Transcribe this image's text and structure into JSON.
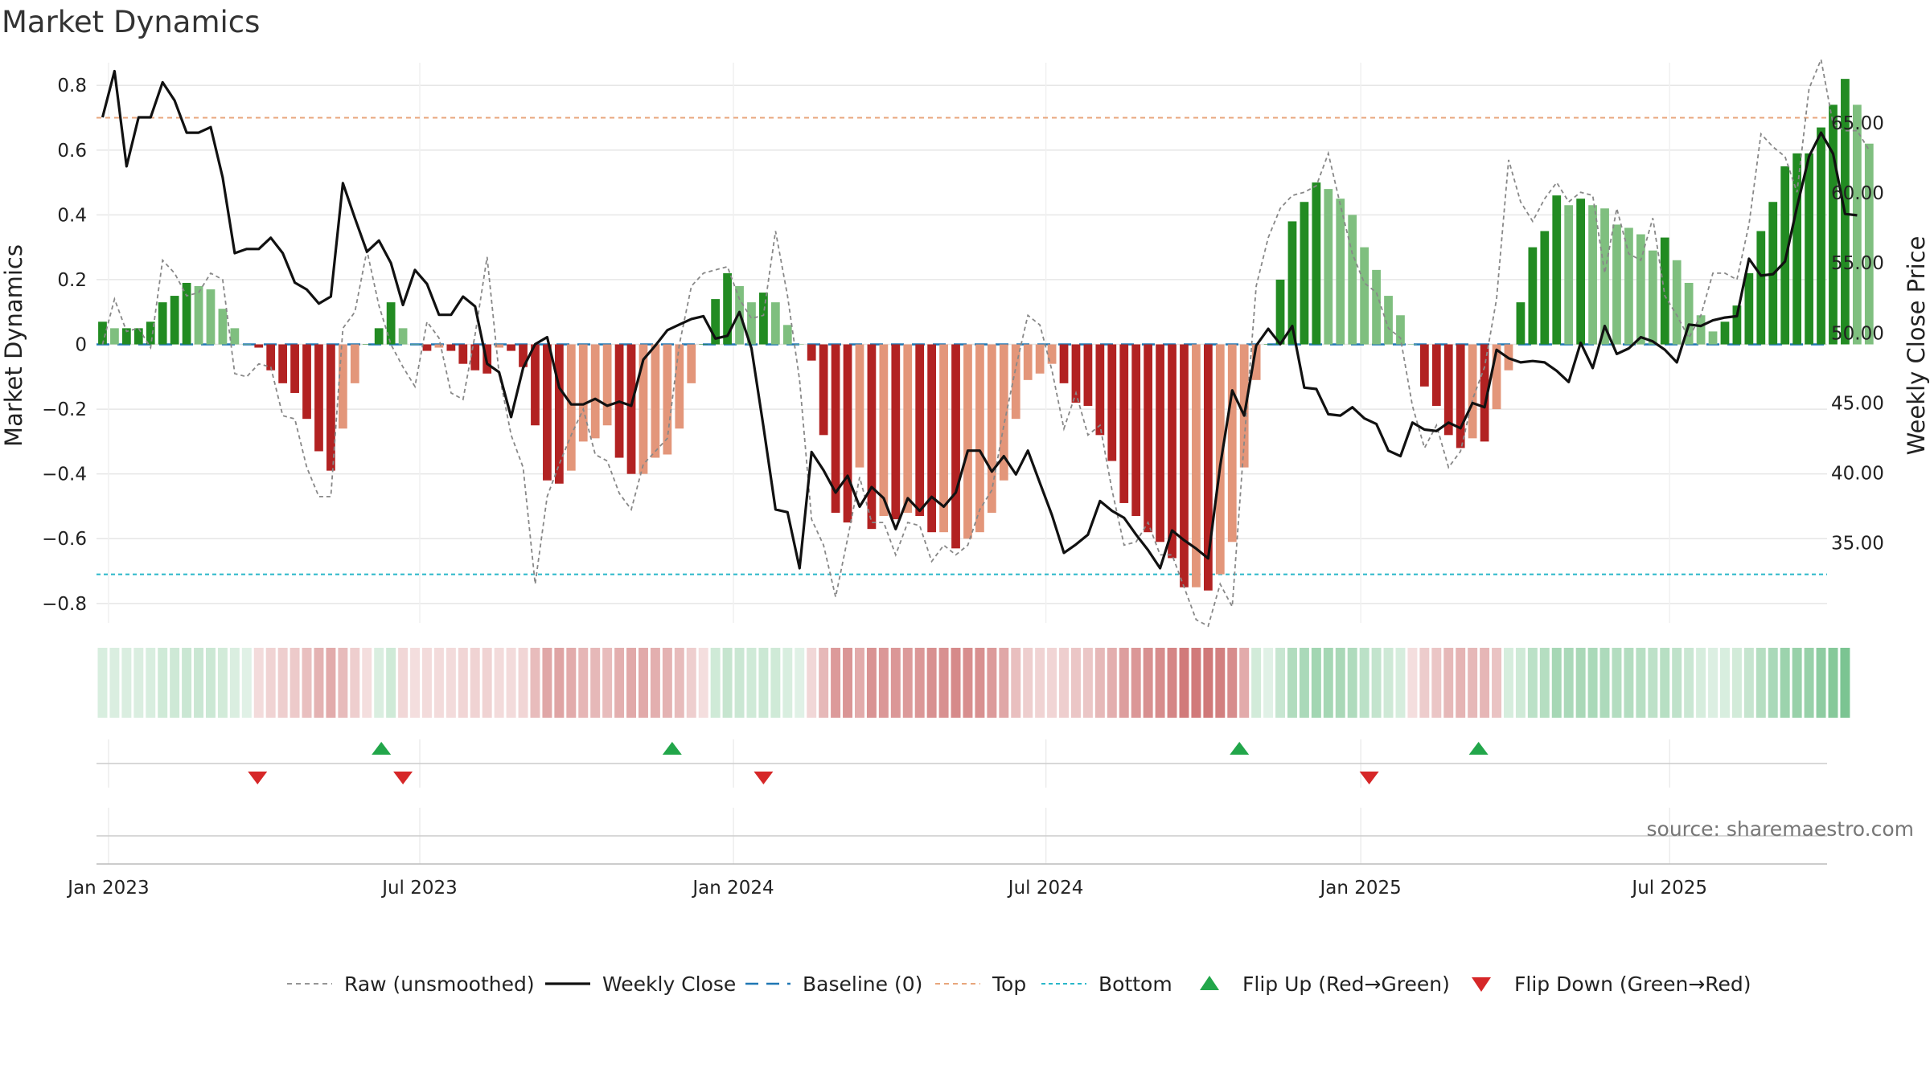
{
  "chart_data": {
    "type": "bar",
    "title": "Market Dynamics",
    "ylabel": "Market Dynamics",
    "y2label": "Weekly Close Price",
    "ylim": [
      -0.86,
      0.87
    ],
    "y2lim": [
      29.3,
      69.3
    ],
    "yticks": [
      {
        "v": 0.8,
        "label": "0.8"
      },
      {
        "v": 0.6,
        "label": "0.6"
      },
      {
        "v": 0.4,
        "label": "0.4"
      },
      {
        "v": 0.2,
        "label": "0.2"
      },
      {
        "v": 0,
        "label": "0"
      },
      {
        "v": -0.2,
        "label": "−0.2"
      },
      {
        "v": -0.4,
        "label": "−0.4"
      },
      {
        "v": -0.6,
        "label": "−0.6"
      },
      {
        "v": -0.8,
        "label": "−0.8"
      }
    ],
    "y2ticks": [
      {
        "v": 65,
        "label": "65.00"
      },
      {
        "v": 60,
        "label": "60.00"
      },
      {
        "v": 55,
        "label": "55.00"
      },
      {
        "v": 50,
        "label": "50.00"
      },
      {
        "v": 45,
        "label": "45.00"
      },
      {
        "v": 40,
        "label": "40.00"
      },
      {
        "v": 35,
        "label": "35.00"
      }
    ],
    "xticks": [
      {
        "week": 0.5,
        "label": "Jan 2023"
      },
      {
        "week": 26.4,
        "label": "Jul 2023"
      },
      {
        "week": 52.5,
        "label": "Jan 2024"
      },
      {
        "week": 78.5,
        "label": "Jul 2024"
      },
      {
        "week": 104.7,
        "label": "Jan 2025"
      },
      {
        "week": 130.4,
        "label": "Jul 2025"
      }
    ],
    "top_level": 0.7,
    "bottom_level": -0.71,
    "baseline": 0,
    "weeks": 144,
    "smoothed": [
      0.07,
      0.05,
      0.05,
      0.05,
      0.07,
      0.13,
      0.15,
      0.19,
      0.18,
      0.17,
      0.11,
      0.05,
      0.0,
      -0.01,
      -0.08,
      -0.12,
      -0.15,
      -0.23,
      -0.33,
      -0.39,
      -0.26,
      -0.12,
      0.0,
      0.05,
      0.13,
      0.05,
      0.0,
      -0.02,
      -0.01,
      -0.02,
      -0.06,
      -0.08,
      -0.09,
      -0.01,
      -0.02,
      -0.07,
      -0.25,
      -0.42,
      -0.43,
      -0.39,
      -0.3,
      -0.29,
      -0.25,
      -0.35,
      -0.4,
      -0.4,
      -0.35,
      -0.34,
      -0.26,
      -0.12,
      0.0,
      0.14,
      0.22,
      0.18,
      0.13,
      0.16,
      0.13,
      0.06,
      0.0,
      -0.05,
      -0.28,
      -0.52,
      -0.55,
      -0.38,
      -0.57,
      -0.53,
      -0.54,
      -0.52,
      -0.53,
      -0.58,
      -0.58,
      -0.63,
      -0.6,
      -0.58,
      -0.52,
      -0.42,
      -0.23,
      -0.11,
      -0.09,
      -0.06,
      -0.12,
      -0.18,
      -0.19,
      -0.28,
      -0.36,
      -0.49,
      -0.53,
      -0.58,
      -0.61,
      -0.66,
      -0.75,
      -0.75,
      -0.76,
      -0.71,
      -0.61,
      -0.38,
      -0.11,
      0.0,
      0.2,
      0.38,
      0.44,
      0.5,
      0.48,
      0.45,
      0.4,
      0.3,
      0.23,
      0.15,
      0.09,
      0.0,
      -0.13,
      -0.19,
      -0.28,
      -0.32,
      -0.29,
      -0.3,
      -0.2,
      -0.08,
      0.13,
      0.3,
      0.35,
      0.46,
      0.43,
      0.45,
      0.43,
      0.42,
      0.37,
      0.36,
      0.34,
      0.29,
      0.33,
      0.26,
      0.19,
      0.09,
      0.04,
      0.07,
      0.12,
      0.22,
      0.35,
      0.44,
      0.55,
      0.59,
      0.59,
      0.67,
      0.74,
      0.82,
      0.74,
      0.62
    ],
    "raw": [
      0.0,
      0.14,
      0.04,
      0.05,
      -0.01,
      0.26,
      0.22,
      0.15,
      0.16,
      0.22,
      0.2,
      -0.09,
      -0.1,
      -0.06,
      -0.07,
      -0.22,
      -0.23,
      -0.38,
      -0.47,
      -0.47,
      0.05,
      0.1,
      0.29,
      0.12,
      0.0,
      -0.07,
      -0.13,
      0.07,
      0.02,
      -0.15,
      -0.17,
      0.03,
      0.27,
      -0.09,
      -0.28,
      -0.38,
      -0.74,
      -0.47,
      -0.37,
      -0.28,
      -0.2,
      -0.34,
      -0.36,
      -0.46,
      -0.51,
      -0.37,
      -0.33,
      -0.29,
      0.0,
      0.18,
      0.22,
      0.23,
      0.24,
      0.14,
      0.08,
      0.09,
      0.35,
      0.15,
      -0.11,
      -0.54,
      -0.62,
      -0.78,
      -0.6,
      -0.41,
      -0.55,
      -0.55,
      -0.65,
      -0.55,
      -0.56,
      -0.67,
      -0.62,
      -0.65,
      -0.62,
      -0.51,
      -0.45,
      -0.25,
      -0.07,
      0.09,
      0.06,
      -0.08,
      -0.26,
      -0.15,
      -0.28,
      -0.25,
      -0.45,
      -0.62,
      -0.61,
      -0.55,
      -0.65,
      -0.65,
      -0.75,
      -0.85,
      -0.87,
      -0.74,
      -0.81,
      -0.3,
      0.18,
      0.33,
      0.42,
      0.46,
      0.47,
      0.49,
      0.59,
      0.43,
      0.28,
      0.19,
      0.16,
      0.05,
      0.02,
      -0.19,
      -0.32,
      -0.25,
      -0.38,
      -0.33,
      -0.17,
      -0.07,
      0.14,
      0.57,
      0.44,
      0.38,
      0.45,
      0.5,
      0.44,
      0.47,
      0.46,
      0.22,
      0.42,
      0.28,
      0.26,
      0.39,
      0.15,
      0.09,
      0.02,
      0.09,
      0.22,
      0.22,
      0.2,
      0.37,
      0.65,
      0.61,
      0.58,
      0.47,
      0.79,
      0.88,
      0.68,
      0.66,
      0.66,
      0.6
    ],
    "close": [
      65.4,
      68.7,
      61.9,
      65.4,
      65.4,
      67.9,
      66.6,
      64.3,
      64.3,
      64.7,
      61.1,
      55.7,
      56.0,
      56.0,
      56.8,
      55.7,
      53.6,
      53.1,
      52.1,
      52.6,
      60.7,
      58.2,
      55.8,
      56.6,
      55.0,
      52.0,
      54.5,
      53.5,
      51.3,
      51.3,
      52.6,
      51.9,
      47.8,
      47.2,
      44.0,
      47.5,
      49.2,
      49.7,
      46.1,
      44.9,
      44.9,
      45.3,
      44.8,
      45.1,
      44.8,
      48.1,
      49.1,
      50.2,
      50.6,
      51.0,
      51.2,
      49.6,
      49.8,
      51.5,
      48.9,
      43.3,
      37.4,
      37.2,
      33.2,
      41.5,
      40.2,
      38.6,
      39.8,
      37.6,
      39.0,
      38.2,
      36.0,
      38.2,
      37.3,
      38.3,
      37.6,
      38.6,
      41.6,
      41.6,
      40.1,
      41.2,
      39.9,
      41.6,
      39.3,
      37.0,
      34.3,
      34.9,
      35.6,
      38.0,
      37.3,
      36.8,
      35.6,
      34.5,
      33.2,
      35.9,
      35.2,
      34.6,
      33.9,
      40.5,
      45.9,
      44.1,
      49.1,
      50.3,
      49.2,
      50.5,
      46.1,
      46.0,
      44.2,
      44.1,
      44.7,
      43.9,
      43.5,
      41.6,
      41.2,
      43.6,
      43.1,
      43.0,
      43.6,
      43.2,
      45.0,
      44.7,
      48.8,
      48.2,
      47.9,
      48.0,
      47.9,
      47.3,
      46.5,
      49.3,
      47.5,
      50.5,
      48.5,
      48.9,
      49.7,
      49.4,
      48.8,
      47.9,
      50.6,
      50.5,
      50.9,
      51.1,
      51.2,
      55.3,
      54.1,
      54.2,
      55.1,
      59.0,
      62.6,
      64.3,
      62.8,
      58.5,
      58.4
    ],
    "regimes": [
      "G",
      "G",
      "G",
      "G",
      "G",
      "G",
      "G",
      "G",
      "G",
      "G",
      "G",
      "G",
      "G",
      "R",
      "R",
      "R",
      "R",
      "R",
      "R",
      "R",
      "R",
      "R",
      "R",
      "G",
      "G",
      "R",
      "R",
      "R",
      "R",
      "R",
      "R",
      "R",
      "R",
      "R",
      "R",
      "R",
      "R",
      "R",
      "R",
      "R",
      "R",
      "R",
      "R",
      "R",
      "R",
      "R",
      "R",
      "R",
      "R",
      "R",
      "R",
      "G",
      "G",
      "G",
      "G",
      "G",
      "G",
      "G",
      "G",
      "R",
      "R",
      "R",
      "R",
      "R",
      "R",
      "R",
      "R",
      "R",
      "R",
      "R",
      "R",
      "R",
      "R",
      "R",
      "R",
      "R",
      "R",
      "R",
      "R",
      "R",
      "R",
      "R",
      "R",
      "R",
      "R",
      "R",
      "R",
      "R",
      "R",
      "R",
      "R",
      "R",
      "R",
      "R",
      "R",
      "R",
      "G",
      "G",
      "G",
      "G",
      "G",
      "G",
      "G",
      "G",
      "G",
      "G",
      "G",
      "G",
      "G",
      "R",
      "R",
      "R",
      "R",
      "R",
      "R",
      "R",
      "R",
      "G",
      "G",
      "G",
      "G",
      "G",
      "G",
      "G",
      "G",
      "G",
      "G",
      "G",
      "G",
      "G",
      "G",
      "G",
      "G",
      "G",
      "G",
      "G",
      "G",
      "G",
      "G",
      "G",
      "G",
      "G",
      "G",
      "G",
      "G",
      "G"
    ],
    "flip_up_weeks": [
      23.2,
      47.4,
      94.6,
      114.5
    ],
    "flip_down_weeks": [
      12.9,
      25.0,
      55.0,
      105.4
    ],
    "source": "source: sharemaestro.com",
    "legend": [
      "Raw (unsmoothed)",
      "Weekly Close",
      "Baseline (0)",
      "Top",
      "Bottom",
      "Flip Up (Red→Green)",
      "Flip Down (Green→Red)"
    ],
    "colors": {
      "green_dark": "#228b22",
      "green_light": "#7fbf7f",
      "red_dark": "#b22222",
      "red_light": "#e3967a",
      "close": "#111111",
      "raw": "#888888",
      "baseline": "#1f77b4",
      "top": "#e8a67c",
      "bottom": "#2ab7c9",
      "flip_up": "#22a64a",
      "flip_down": "#d62728"
    }
  }
}
